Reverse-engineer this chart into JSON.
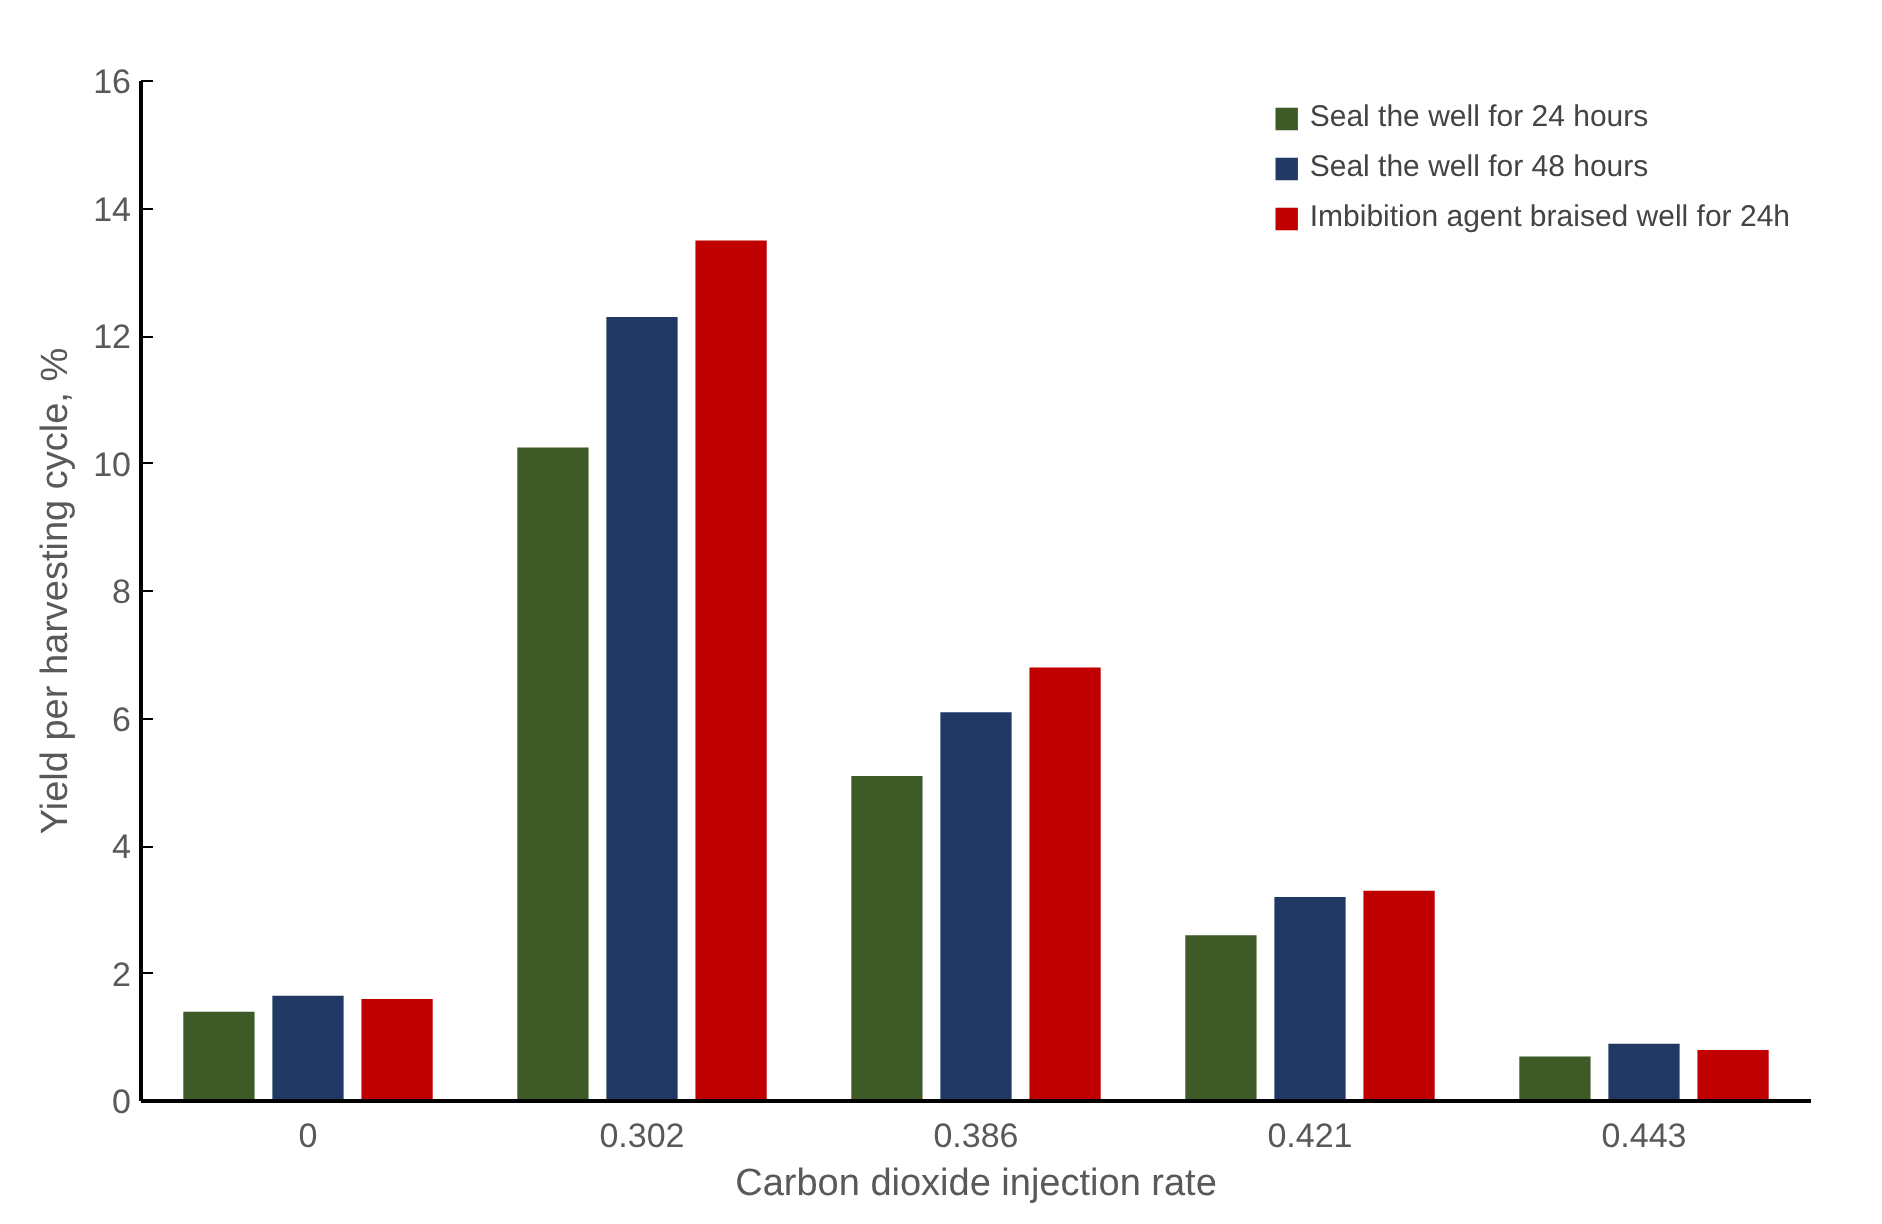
{
  "chart_data": {
    "type": "bar",
    "xlabel": "Carbon dioxide injection rate",
    "ylabel": "Yield per harvesting cycle, %",
    "categories": [
      "0",
      "0.302",
      "0.386",
      "0.421",
      "0.443"
    ],
    "series": [
      {
        "name": "Seal the well for 24 hours",
        "color": "#3d5a27",
        "values": [
          1.4,
          10.25,
          5.1,
          2.6,
          0.7
        ]
      },
      {
        "name": "Seal the well for 48 hours",
        "color": "#203864",
        "values": [
          1.65,
          12.3,
          6.1,
          3.2,
          0.9
        ]
      },
      {
        "name": "Imbibition agent braised well for 24h",
        "color": "#c00000",
        "values": [
          1.6,
          13.5,
          6.8,
          3.3,
          0.8
        ]
      }
    ],
    "ylim": [
      0,
      16
    ],
    "yticks": [
      0,
      2,
      4,
      6,
      8,
      10,
      12,
      14,
      16
    ],
    "grid": false,
    "legend": "top right"
  }
}
